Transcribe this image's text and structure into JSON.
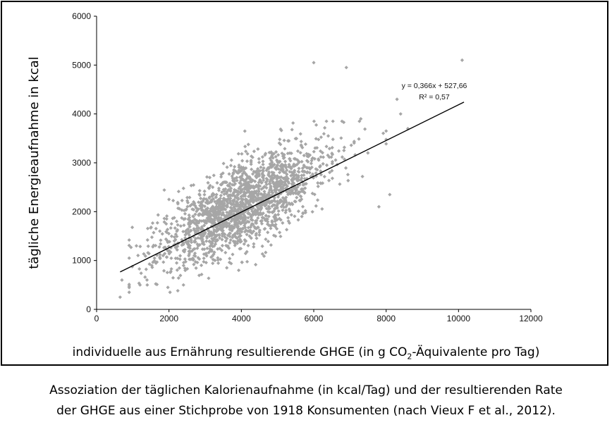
{
  "chart_data": {
    "type": "scatter",
    "title": "",
    "xlabel_pre": "individuelle aus Ernährung resultierende GHGE (in g CO",
    "xlabel_sub": "2",
    "xlabel_post": "-Äquivalente pro Tag)",
    "ylabel": "tägliche Energieaufnahme in kcal",
    "xlim": [
      0,
      12000
    ],
    "ylim": [
      0,
      6000
    ],
    "xticks": [
      "0",
      "2000",
      "4000",
      "6000",
      "8000",
      "10000",
      "12000"
    ],
    "yticks": [
      "0",
      "1000",
      "2000",
      "3000",
      "4000",
      "5000",
      "6000"
    ],
    "grid": false,
    "n_points": 1918,
    "point_color": "#a6a6a6",
    "trendline": {
      "slope": 0.366,
      "intercept": 527.66,
      "x_range": [
        650,
        10150
      ],
      "equation": "y = 0,366x + 527,66",
      "r2": "R² = 0,57"
    },
    "outliers": [
      [
        650,
        250
      ],
      [
        700,
        600
      ],
      [
        1100,
        1300
      ],
      [
        1200,
        500
      ],
      [
        1400,
        500
      ],
      [
        1600,
        1050
      ],
      [
        2000,
        2250
      ],
      [
        2400,
        500
      ],
      [
        6000,
        5050
      ],
      [
        6400,
        3550
      ],
      [
        6900,
        4950
      ],
      [
        7300,
        3900
      ],
      [
        7800,
        2100
      ],
      [
        8000,
        3650
      ],
      [
        8100,
        2350
      ],
      [
        8300,
        4300
      ],
      [
        8400,
        4000
      ],
      [
        8600,
        3700
      ],
      [
        10100,
        5100
      ]
    ]
  },
  "caption": {
    "line1": "Assoziation der täglichen Kalorienaufnahme (in kcal/Tag) und der resultierenden Rate",
    "line2": "der GHGE aus einer Stichprobe von 1918 Konsumenten (nach Vieux F et al., 2012)."
  }
}
